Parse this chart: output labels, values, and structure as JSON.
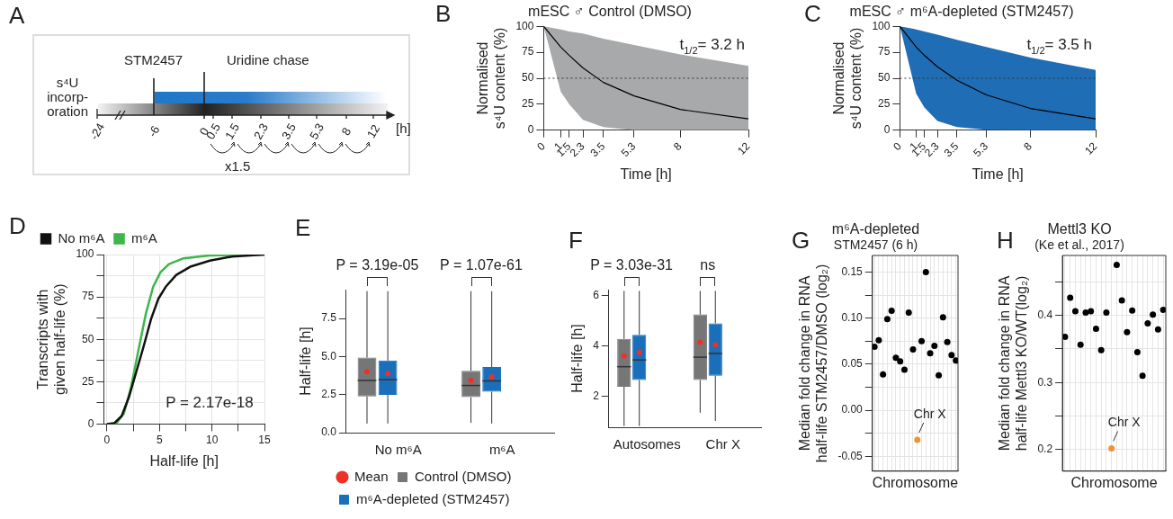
{
  "chart_data": [
    {
      "type": "other",
      "annotations": [
        "A",
        "STM2457",
        "Uridine chase",
        "s⁴U\nincorp-\noration",
        "-24",
        "-6",
        "0",
        "0.5",
        "1.5",
        "2.3",
        "3.5",
        "5.3",
        "8",
        "12",
        "[h]",
        "x1.5"
      ]
    },
    {
      "type": "line",
      "title": "mESC ♂ Control (DMSO)",
      "xlabel": "Time [h]",
      "ylabel": "Normalised\ns⁴U content (%)",
      "annotations": [
        "B",
        "t$_{1/2}$= 3.2 h"
      ],
      "x": [
        0,
        1,
        1.5,
        2.3,
        3.5,
        5.3,
        8,
        12
      ],
      "colors": [
        "#a7a9ab"
      ],
      "series": [
        {
          "color": "#000000",
          "values": [
            100,
            80,
            72,
            60,
            46,
            33,
            20,
            11
          ],
          "lower": [
            100,
            37,
            25,
            10,
            3,
            0,
            0,
            0
          ],
          "upper": [
            100,
            97,
            95,
            93,
            88,
            82,
            73,
            62
          ]
        }
      ],
      "xlim": [
        0,
        12
      ],
      "xticks": [
        0,
        1,
        1.5,
        2.3,
        3.5,
        5.3,
        8,
        12
      ],
      "ylim": [
        0,
        100
      ],
      "yticks": [
        0,
        25,
        50,
        75,
        100
      ],
      "ref_lines": [
        {
          "axis": "y",
          "value": 50,
          "line_style": "dotted"
        }
      ]
    },
    {
      "type": "line",
      "title": "mESC ♂ m⁶A-depleted (STM2457)",
      "xlabel": "Time [h]",
      "ylabel": "Normalised\ns⁴U content (%)",
      "annotations": [
        "C",
        "t$_{1/2}$= 3.5 h"
      ],
      "x": [
        0,
        1,
        1.5,
        2.3,
        3.5,
        5.3,
        8,
        12
      ],
      "colors": [
        "#1f6db5"
      ],
      "series": [
        {
          "color": "#000000",
          "values": [
            100,
            80,
            72,
            61,
            48,
            34,
            21,
            11
          ],
          "lower": [
            100,
            35,
            22,
            9,
            3,
            0.5,
            0,
            0
          ],
          "upper": [
            100,
            97,
            95,
            92,
            87,
            80,
            70,
            58
          ]
        }
      ],
      "xlim": [
        0,
        12
      ],
      "xticks": [
        0,
        1,
        1.5,
        2.3,
        3.5,
        5.3,
        8,
        12
      ],
      "ylim": [
        0,
        100
      ],
      "yticks": [
        0,
        25,
        50,
        75,
        100
      ],
      "ref_lines": [
        {
          "axis": "y",
          "value": 50,
          "line_style": "dotted"
        }
      ]
    },
    {
      "type": "line",
      "xlabel": "Half-life [h]",
      "ylabel": "Transcripts with\ngiven half-life (%)",
      "annotations": [
        "D",
        "P = 2.17e-18"
      ],
      "series": [
        {
          "name": "No m⁶A",
          "color": "#111111",
          "x": [
            0,
            0.7,
            1.4,
            2.1,
            2.8,
            3.5,
            4.2,
            4.9,
            5.6,
            6.6,
            8,
            9.8,
            11.9,
            15
          ],
          "values": [
            0,
            0.5,
            4.8,
            16,
            31,
            46,
            62,
            74,
            81,
            88,
            93,
            96.4,
            98.8,
            100
          ]
        },
        {
          "name": "m⁶A",
          "color": "#3db54a",
          "x": [
            0,
            0.9,
            1.6,
            2.3,
            3,
            3.7,
            4.4,
            5.1,
            5.9,
            7.3,
            9.8,
            15
          ],
          "values": [
            0,
            0.5,
            6,
            22,
            43.6,
            65,
            81,
            89.6,
            94.4,
            97.8,
            99.5,
            100
          ]
        }
      ],
      "xlim": [
        -0.3,
        15
      ],
      "xticks": [
        0,
        {
          "value": 2.5,
          "label": null
        },
        5,
        {
          "value": 7.5,
          "label": null
        },
        10,
        {
          "value": 12.5,
          "label": null
        },
        15
      ],
      "ylim": [
        0,
        100
      ],
      "yticks": [
        0,
        {
          "value": 12.5,
          "label": null
        },
        25,
        {
          "value": 37.5,
          "label": null
        },
        50,
        {
          "value": 62.5,
          "label": null
        },
        75,
        {
          "value": 87.5,
          "label": null
        },
        100
      ],
      "grid": true,
      "legend": "top left"
    },
    {
      "type": "box",
      "ylabel": "Half-life [h]",
      "annotations": [
        "E",
        "P = 3.19e-05",
        "P = 1.07e-61"
      ],
      "categories": [
        "No m⁶A",
        "m⁶A"
      ],
      "series": [
        {
          "name": "Control (DMSO)",
          "color": "#767676",
          "boxes": [
            {
              "low": 0.6,
              "q1": 2.38,
              "median": 3.43,
              "q3": 4.93,
              "high": 9.3
            },
            {
              "low": 0.64,
              "q1": 2.33,
              "median": 3.1,
              "q3": 4.07,
              "high": 9.3
            }
          ]
        },
        {
          "name": "m⁶A-depleted (STM2457)",
          "color": "#1a6fba",
          "boxes": [
            {
              "low": 0.6,
              "q1": 2.48,
              "median": 3.48,
              "q3": 4.74,
              "high": 9.3
            },
            {
              "low": 0.6,
              "q1": 2.69,
              "median": 3.4,
              "q3": 4.31,
              "high": 9.3
            }
          ]
        },
        {
          "name": "Mean",
          "type": "scatter",
          "color": "#ee3124",
          "x": [
            "No m⁶A",
            "No m⁶A",
            "m⁶A",
            "m⁶A"
          ],
          "values": [
            4.0,
            3.88,
            3.43,
            3.67
          ]
        }
      ],
      "ylim": [
        0,
        9.4
      ],
      "yticks": [
        {
          "value": 0,
          "label": "0.0"
        },
        2.5,
        {
          "value": 5,
          "label": "5.0"
        },
        7.5
      ],
      "legend": "bottom",
      "marker": "circle"
    },
    {
      "type": "box",
      "ylabel": "Half-life [h]",
      "annotations": [
        "F",
        "P = 3.03e-31",
        "ns"
      ],
      "categories": [
        "Autosomes",
        "Chr X"
      ],
      "series": [
        {
          "color": "#767676",
          "boxes": [
            {
              "low": 0.8,
              "q1": 2.37,
              "median": 3.17,
              "q3": 4.28,
              "high": 6.2
            },
            {
              "low": 1.33,
              "q1": 2.64,
              "median": 3.55,
              "q3": 5.26,
              "high": 6.2
            }
          ]
        },
        {
          "color": "#1a6fba",
          "boxes": [
            {
              "low": 0.8,
              "q1": 2.64,
              "median": 3.44,
              "q3": 4.44,
              "high": 6.2
            },
            {
              "low": 1.0,
              "q1": 2.81,
              "median": 3.7,
              "q3": 4.9,
              "high": 6.2
            }
          ]
        },
        {
          "type": "scatter",
          "color": "#ee3124",
          "x": [
            "Autosomes",
            "Autosomes",
            "Chr X",
            "Chr X"
          ],
          "values": [
            3.6,
            3.73,
            4.15,
            4.05
          ]
        }
      ],
      "ylim": [
        0.75,
        6.25
      ],
      "yticks": [
        2,
        4,
        6
      ],
      "marker": "circle"
    },
    {
      "type": "scatter",
      "title": "m⁶A-depleted",
      "subtitle": "STM2457 (6 h)",
      "xlabel": "Chromosome",
      "ylabel": "Median fold change in RNA\nhalf-life STM2457/DMSO (log₂)",
      "annotations": [
        "G",
        "Chr X"
      ],
      "categories": [
        null,
        null,
        null,
        null,
        null,
        null,
        null,
        null,
        null,
        null,
        null,
        null,
        null,
        null,
        null,
        null,
        null,
        null,
        null,
        null
      ],
      "series": [
        {
          "color": "#000000",
          "values": [
            0.069,
            0.076,
            0.039,
            0.099,
            0.108,
            0.057,
            0.053,
            0.044,
            0.106,
            0.066,
            null,
            0.075,
            0.15,
            0.062,
            0.07,
            0.038,
            0.101,
            0.074,
            0.06,
            0.054
          ]
        },
        {
          "color": "#f39235",
          "values": [
            null,
            null,
            null,
            null,
            null,
            null,
            null,
            null,
            null,
            null,
            -0.032,
            null,
            null,
            null,
            null,
            null,
            null,
            null,
            null,
            null
          ]
        }
      ],
      "ylim": [
        -0.066,
        0.168
      ],
      "yticks": [
        -0.05,
        {
          "value": -0.025,
          "label": null
        },
        {
          "value": 0,
          "label": "0.00"
        },
        {
          "value": 0.025,
          "label": null
        },
        0.05,
        {
          "value": 0.075,
          "label": null
        },
        {
          "value": 0.1,
          "label": "0.10"
        },
        {
          "value": 0.125,
          "label": null
        },
        0.15
      ],
      "grid": true,
      "tick_labels": "y",
      "marker": "circle"
    },
    {
      "type": "scatter",
      "title": "Mettl3 KO",
      "subtitle": "(Ke et al., 2017)",
      "xlabel": "Chromosome",
      "ylabel": "Median fold change in RNA\nhalf-life Mettl3 KO/WT(log₂)",
      "annotations": [
        "H",
        "Chr X"
      ],
      "categories": [
        null,
        null,
        null,
        null,
        null,
        null,
        null,
        null,
        null,
        null,
        null,
        null,
        null,
        null,
        null,
        null,
        null,
        null,
        null,
        null
      ],
      "series": [
        {
          "color": "#000000",
          "values": [
            0.368,
            0.426,
            0.406,
            0.356,
            0.404,
            0.406,
            0.38,
            0.348,
            0.404,
            null,
            0.475,
            0.422,
            0.375,
            0.407,
            0.345,
            0.31,
            0.388,
            0.401,
            0.379,
            0.408
          ]
        },
        {
          "color": "#f39235",
          "values": [
            null,
            null,
            null,
            null,
            null,
            null,
            null,
            null,
            null,
            0.202,
            null,
            null,
            null,
            null,
            null,
            null,
            null,
            null,
            null,
            null
          ]
        }
      ],
      "ylim": [
        0.168,
        0.489
      ],
      "yticks": [
        0.2,
        {
          "value": 0.25,
          "label": null
        },
        0.3,
        {
          "value": 0.35,
          "label": null
        },
        0.4,
        {
          "value": 0.45,
          "label": null
        }
      ],
      "grid": true,
      "tick_labels": "y",
      "marker": "circle"
    }
  ]
}
